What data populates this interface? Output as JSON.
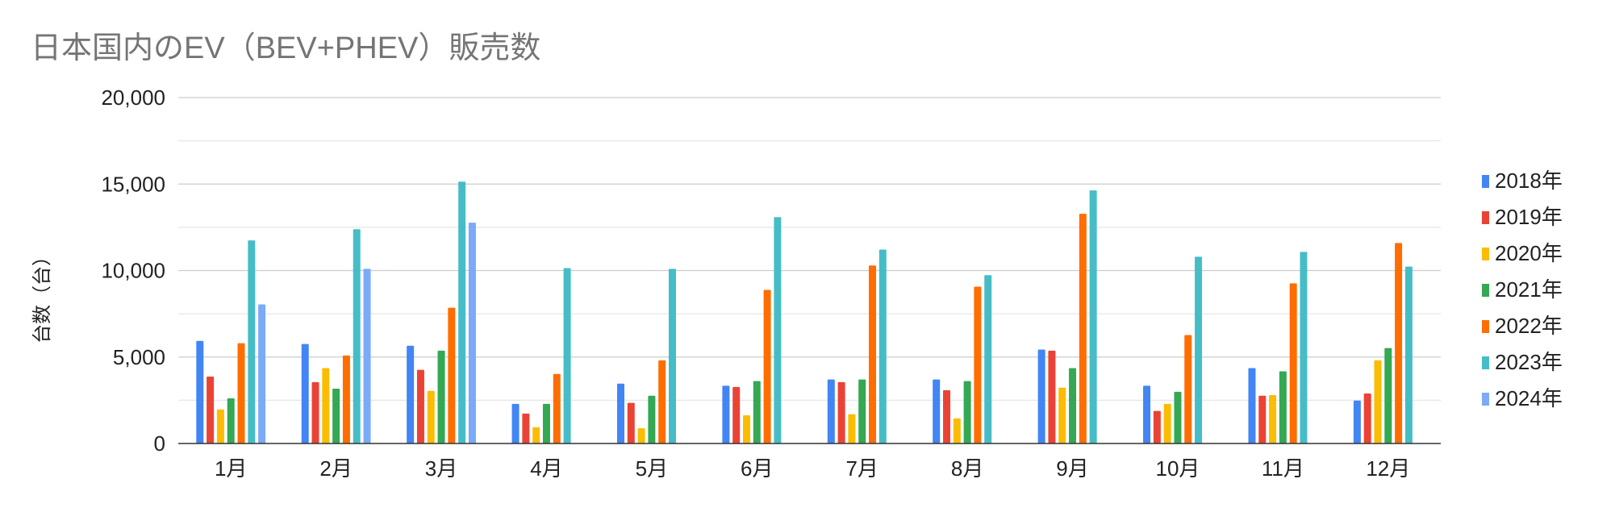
{
  "chart_data": {
    "type": "bar",
    "title": "日本国内のEV（BEV+PHEV）販売数",
    "xlabel": "",
    "ylabel": "台数（台）",
    "ylim": [
      0,
      20000
    ],
    "yticks": [
      "0",
      "5,000",
      "10,000",
      "15,000",
      "20,000"
    ],
    "ytick_values": [
      0,
      5000,
      10000,
      15000,
      20000
    ],
    "minor_grid_step": 2500,
    "grid": true,
    "legend_position": "right",
    "categories": [
      "1月",
      "2月",
      "3月",
      "4月",
      "5月",
      "6月",
      "7月",
      "8月",
      "9月",
      "10月",
      "11月",
      "12月"
    ],
    "series": [
      {
        "name": "2018年",
        "color": "#4285F4",
        "values": [
          5930,
          5750,
          5650,
          2290,
          3460,
          3340,
          3700,
          3700,
          5430,
          3340,
          4360,
          2480
        ]
      },
      {
        "name": "2019年",
        "color": "#EA4335",
        "values": [
          3870,
          3550,
          4260,
          1730,
          2350,
          3270,
          3550,
          3080,
          5370,
          1880,
          2760,
          2890
        ]
      },
      {
        "name": "2020年",
        "color": "#FBBC04",
        "values": [
          1970,
          4360,
          3040,
          940,
          880,
          1630,
          1690,
          1450,
          3230,
          2290,
          2800,
          4810
        ]
      },
      {
        "name": "2021年",
        "color": "#34A853",
        "values": [
          2610,
          3170,
          5370,
          2290,
          2760,
          3610,
          3700,
          3610,
          4360,
          2990,
          4170,
          5520
        ]
      },
      {
        "name": "2022年",
        "color": "#FF6D01",
        "values": [
          5800,
          5090,
          7850,
          4020,
          4810,
          8880,
          10290,
          9070,
          13280,
          6270,
          9260,
          11590
        ]
      },
      {
        "name": "2023年",
        "color": "#46BDC6",
        "values": [
          11740,
          12390,
          15140,
          10140,
          10100,
          13090,
          11210,
          9730,
          14630,
          10800,
          11080,
          10230
        ]
      },
      {
        "name": "2024年",
        "color": "#7BAAF7",
        "values": [
          8040,
          10100,
          12770,
          null,
          null,
          null,
          null,
          null,
          null,
          null,
          null,
          null
        ]
      }
    ]
  }
}
